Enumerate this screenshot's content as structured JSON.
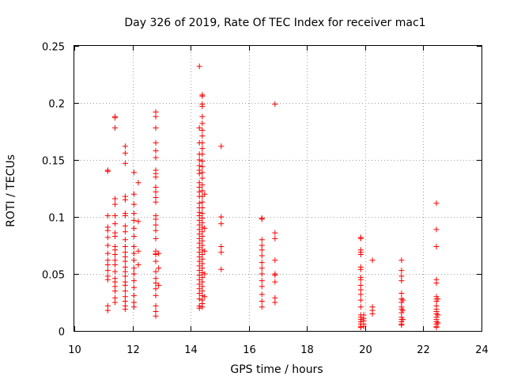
{
  "chart_data": {
    "type": "scatter",
    "title": "Day 326 of 2019, Rate Of TEC Index for receiver mac1",
    "xlabel": "GPS time / hours",
    "ylabel": "ROTI / TECUs",
    "xlim": [
      10,
      24
    ],
    "ylim": [
      0,
      0.25
    ],
    "xticks": [
      10,
      12,
      14,
      16,
      18,
      20,
      22,
      24
    ],
    "xtick_labels": [
      "10",
      "12",
      "14",
      "16",
      "18",
      "20",
      "22",
      "24"
    ],
    "yticks": [
      0,
      0.05,
      0.1,
      0.15,
      0.2,
      0.25
    ],
    "ytick_labels": [
      "0",
      "0.05",
      "0.1",
      "0.15",
      "0.2",
      "0.25"
    ],
    "grid": true,
    "marker": "+",
    "colors": {
      "points": "#ff0000",
      "grid": "#a0a0a0",
      "axes": "#000000"
    },
    "series": [
      {
        "name": "ROTI",
        "points": [
          [
            11.15,
            0.141
          ],
          [
            11.15,
            0.14
          ],
          [
            11.15,
            0.101
          ],
          [
            11.15,
            0.091
          ],
          [
            11.15,
            0.088
          ],
          [
            11.15,
            0.082
          ],
          [
            11.15,
            0.075
          ],
          [
            11.15,
            0.068
          ],
          [
            11.15,
            0.062
          ],
          [
            11.15,
            0.058
          ],
          [
            11.15,
            0.053
          ],
          [
            11.15,
            0.048
          ],
          [
            11.15,
            0.045
          ],
          [
            11.15,
            0.022
          ],
          [
            11.15,
            0.018
          ],
          [
            11.4,
            0.188
          ],
          [
            11.4,
            0.187
          ],
          [
            11.4,
            0.178
          ],
          [
            11.4,
            0.116
          ],
          [
            11.4,
            0.111
          ],
          [
            11.4,
            0.101
          ],
          [
            11.4,
            0.094
          ],
          [
            11.4,
            0.086
          ],
          [
            11.4,
            0.083
          ],
          [
            11.4,
            0.074
          ],
          [
            11.4,
            0.071
          ],
          [
            11.4,
            0.067
          ],
          [
            11.4,
            0.062
          ],
          [
            11.4,
            0.058
          ],
          [
            11.4,
            0.052
          ],
          [
            11.4,
            0.046
          ],
          [
            11.4,
            0.043
          ],
          [
            11.4,
            0.039
          ],
          [
            11.4,
            0.035
          ],
          [
            11.4,
            0.029
          ],
          [
            11.4,
            0.025
          ],
          [
            11.75,
            0.162
          ],
          [
            11.75,
            0.156
          ],
          [
            11.75,
            0.147
          ],
          [
            11.75,
            0.118
          ],
          [
            11.75,
            0.115
          ],
          [
            11.75,
            0.103
          ],
          [
            11.75,
            0.101
          ],
          [
            11.75,
            0.092
          ],
          [
            11.75,
            0.087
          ],
          [
            11.75,
            0.08
          ],
          [
            11.75,
            0.074
          ],
          [
            11.75,
            0.069
          ],
          [
            11.75,
            0.065
          ],
          [
            11.75,
            0.061
          ],
          [
            11.75,
            0.056
          ],
          [
            11.75,
            0.052
          ],
          [
            11.75,
            0.048
          ],
          [
            11.75,
            0.043
          ],
          [
            11.75,
            0.04
          ],
          [
            11.75,
            0.035
          ],
          [
            11.75,
            0.03
          ],
          [
            11.75,
            0.026
          ],
          [
            11.75,
            0.022
          ],
          [
            11.75,
            0.019
          ],
          [
            12.05,
            0.139
          ],
          [
            12.05,
            0.12
          ],
          [
            12.05,
            0.111
          ],
          [
            12.05,
            0.103
          ],
          [
            12.05,
            0.097
          ],
          [
            12.05,
            0.09
          ],
          [
            12.05,
            0.083
          ],
          [
            12.05,
            0.074
          ],
          [
            12.05,
            0.068
          ],
          [
            12.05,
            0.062
          ],
          [
            12.05,
            0.055
          ],
          [
            12.05,
            0.05
          ],
          [
            12.05,
            0.044
          ],
          [
            12.05,
            0.038
          ],
          [
            12.05,
            0.031
          ],
          [
            12.05,
            0.025
          ],
          [
            12.05,
            0.021
          ],
          [
            12.2,
            0.13
          ],
          [
            12.2,
            0.096
          ],
          [
            12.2,
            0.07
          ],
          [
            12.2,
            0.058
          ],
          [
            12.8,
            0.192
          ],
          [
            12.8,
            0.188
          ],
          [
            12.8,
            0.178
          ],
          [
            12.8,
            0.165
          ],
          [
            12.8,
            0.158
          ],
          [
            12.8,
            0.152
          ],
          [
            12.8,
            0.141
          ],
          [
            12.8,
            0.138
          ],
          [
            12.8,
            0.135
          ],
          [
            12.8,
            0.126
          ],
          [
            12.8,
            0.122
          ],
          [
            12.8,
            0.117
          ],
          [
            12.8,
            0.113
          ],
          [
            12.8,
            0.101
          ],
          [
            12.8,
            0.098
          ],
          [
            12.8,
            0.093
          ],
          [
            12.8,
            0.088
          ],
          [
            12.8,
            0.081
          ],
          [
            12.8,
            0.07
          ],
          [
            12.8,
            0.068
          ],
          [
            12.8,
            0.067
          ],
          [
            12.8,
            0.061
          ],
          [
            12.8,
            0.052
          ],
          [
            12.8,
            0.046
          ],
          [
            12.8,
            0.042
          ],
          [
            12.8,
            0.037
          ],
          [
            12.8,
            0.031
          ],
          [
            12.8,
            0.022
          ],
          [
            12.8,
            0.017
          ],
          [
            12.8,
            0.013
          ],
          [
            12.9,
            0.068
          ],
          [
            12.9,
            0.055
          ],
          [
            12.9,
            0.04
          ],
          [
            14.3,
            0.232
          ],
          [
            14.3,
            0.178
          ],
          [
            14.3,
            0.165
          ],
          [
            14.3,
            0.155
          ],
          [
            14.3,
            0.15
          ],
          [
            14.3,
            0.145
          ],
          [
            14.3,
            0.141
          ],
          [
            14.3,
            0.138
          ],
          [
            14.3,
            0.13
          ],
          [
            14.3,
            0.126
          ],
          [
            14.3,
            0.122
          ],
          [
            14.3,
            0.118
          ],
          [
            14.3,
            0.112
          ],
          [
            14.3,
            0.108
          ],
          [
            14.3,
            0.104
          ],
          [
            14.3,
            0.101
          ],
          [
            14.3,
            0.097
          ],
          [
            14.3,
            0.093
          ],
          [
            14.3,
            0.089
          ],
          [
            14.3,
            0.085
          ],
          [
            14.3,
            0.081
          ],
          [
            14.3,
            0.077
          ],
          [
            14.3,
            0.073
          ],
          [
            14.3,
            0.069
          ],
          [
            14.3,
            0.065
          ],
          [
            14.3,
            0.061
          ],
          [
            14.3,
            0.057
          ],
          [
            14.3,
            0.053
          ],
          [
            14.3,
            0.049
          ],
          [
            14.3,
            0.045
          ],
          [
            14.3,
            0.041
          ],
          [
            14.3,
            0.037
          ],
          [
            14.3,
            0.033
          ],
          [
            14.3,
            0.028
          ],
          [
            14.3,
            0.022
          ],
          [
            14.3,
            0.02
          ],
          [
            14.4,
            0.207
          ],
          [
            14.4,
            0.206
          ],
          [
            14.4,
            0.199
          ],
          [
            14.4,
            0.197
          ],
          [
            14.4,
            0.188
          ],
          [
            14.4,
            0.182
          ],
          [
            14.4,
            0.176
          ],
          [
            14.4,
            0.171
          ],
          [
            14.4,
            0.165
          ],
          [
            14.4,
            0.16
          ],
          [
            14.4,
            0.155
          ],
          [
            14.4,
            0.149
          ],
          [
            14.4,
            0.144
          ],
          [
            14.4,
            0.139
          ],
          [
            14.4,
            0.134
          ],
          [
            14.4,
            0.128
          ],
          [
            14.4,
            0.123
          ],
          [
            14.4,
            0.118
          ],
          [
            14.4,
            0.113
          ],
          [
            14.4,
            0.108
          ],
          [
            14.4,
            0.103
          ],
          [
            14.4,
            0.099
          ],
          [
            14.4,
            0.095
          ],
          [
            14.4,
            0.091
          ],
          [
            14.4,
            0.087
          ],
          [
            14.4,
            0.083
          ],
          [
            14.4,
            0.079
          ],
          [
            14.4,
            0.075
          ],
          [
            14.4,
            0.071
          ],
          [
            14.4,
            0.067
          ],
          [
            14.4,
            0.063
          ],
          [
            14.4,
            0.059
          ],
          [
            14.4,
            0.055
          ],
          [
            14.4,
            0.051
          ],
          [
            14.4,
            0.047
          ],
          [
            14.4,
            0.043
          ],
          [
            14.4,
            0.039
          ],
          [
            14.4,
            0.035
          ],
          [
            14.4,
            0.031
          ],
          [
            14.4,
            0.027
          ],
          [
            14.4,
            0.024
          ],
          [
            14.4,
            0.021
          ],
          [
            14.48,
            0.12
          ],
          [
            14.48,
            0.09
          ],
          [
            14.48,
            0.07
          ],
          [
            14.48,
            0.05
          ],
          [
            14.48,
            0.03
          ],
          [
            15.05,
            0.162
          ],
          [
            15.05,
            0.1
          ],
          [
            15.05,
            0.094
          ],
          [
            15.05,
            0.074
          ],
          [
            15.05,
            0.069
          ],
          [
            15.05,
            0.054
          ],
          [
            16.45,
            0.099
          ],
          [
            16.45,
            0.098
          ],
          [
            16.45,
            0.08
          ],
          [
            16.45,
            0.075
          ],
          [
            16.45,
            0.071
          ],
          [
            16.45,
            0.066
          ],
          [
            16.45,
            0.06
          ],
          [
            16.45,
            0.055
          ],
          [
            16.45,
            0.05
          ],
          [
            16.45,
            0.044
          ],
          [
            16.45,
            0.039
          ],
          [
            16.45,
            0.032
          ],
          [
            16.45,
            0.026
          ],
          [
            16.45,
            0.021
          ],
          [
            16.9,
            0.199
          ],
          [
            16.9,
            0.086
          ],
          [
            16.9,
            0.081
          ],
          [
            16.9,
            0.062
          ],
          [
            16.9,
            0.05
          ],
          [
            16.9,
            0.049
          ],
          [
            16.9,
            0.043
          ],
          [
            16.9,
            0.029
          ],
          [
            16.9,
            0.025
          ],
          [
            19.85,
            0.082
          ],
          [
            19.85,
            0.081
          ],
          [
            19.85,
            0.071
          ],
          [
            19.85,
            0.069
          ],
          [
            19.85,
            0.067
          ],
          [
            19.85,
            0.056
          ],
          [
            19.85,
            0.054
          ],
          [
            19.85,
            0.047
          ],
          [
            19.85,
            0.045
          ],
          [
            19.85,
            0.04
          ],
          [
            19.85,
            0.036
          ],
          [
            19.85,
            0.032
          ],
          [
            19.85,
            0.027
          ],
          [
            19.85,
            0.021
          ],
          [
            19.85,
            0.014
          ],
          [
            19.85,
            0.012
          ],
          [
            19.85,
            0.01
          ],
          [
            19.85,
            0.008
          ],
          [
            19.85,
            0.006
          ],
          [
            19.85,
            0.004
          ],
          [
            19.85,
            0.003
          ],
          [
            19.95,
            0.014
          ],
          [
            19.95,
            0.011
          ],
          [
            19.95,
            0.009
          ],
          [
            19.95,
            0.006
          ],
          [
            19.95,
            0.004
          ],
          [
            20.25,
            0.062
          ],
          [
            20.25,
            0.021
          ],
          [
            20.25,
            0.018
          ],
          [
            20.25,
            0.015
          ],
          [
            21.25,
            0.062
          ],
          [
            21.25,
            0.053
          ],
          [
            21.25,
            0.048
          ],
          [
            21.25,
            0.044
          ],
          [
            21.25,
            0.033
          ],
          [
            21.25,
            0.028
          ],
          [
            21.25,
            0.025
          ],
          [
            21.25,
            0.021
          ],
          [
            21.25,
            0.019
          ],
          [
            21.25,
            0.016
          ],
          [
            21.25,
            0.012
          ],
          [
            21.25,
            0.01
          ],
          [
            21.25,
            0.008
          ],
          [
            21.25,
            0.006
          ],
          [
            21.25,
            0.005
          ],
          [
            21.3,
            0.027
          ],
          [
            21.3,
            0.018
          ],
          [
            21.3,
            0.01
          ],
          [
            22.45,
            0.112
          ],
          [
            22.45,
            0.089
          ],
          [
            22.45,
            0.074
          ],
          [
            22.45,
            0.045
          ],
          [
            22.45,
            0.042
          ],
          [
            22.45,
            0.03
          ],
          [
            22.45,
            0.028
          ],
          [
            22.45,
            0.026
          ],
          [
            22.45,
            0.022
          ],
          [
            22.45,
            0.019
          ],
          [
            22.45,
            0.017
          ],
          [
            22.45,
            0.015
          ],
          [
            22.45,
            0.012
          ],
          [
            22.45,
            0.01
          ],
          [
            22.45,
            0.008
          ],
          [
            22.45,
            0.006
          ],
          [
            22.45,
            0.004
          ],
          [
            22.45,
            0.003
          ],
          [
            22.5,
            0.028
          ],
          [
            22.5,
            0.014
          ],
          [
            22.5,
            0.007
          ]
        ]
      }
    ]
  }
}
